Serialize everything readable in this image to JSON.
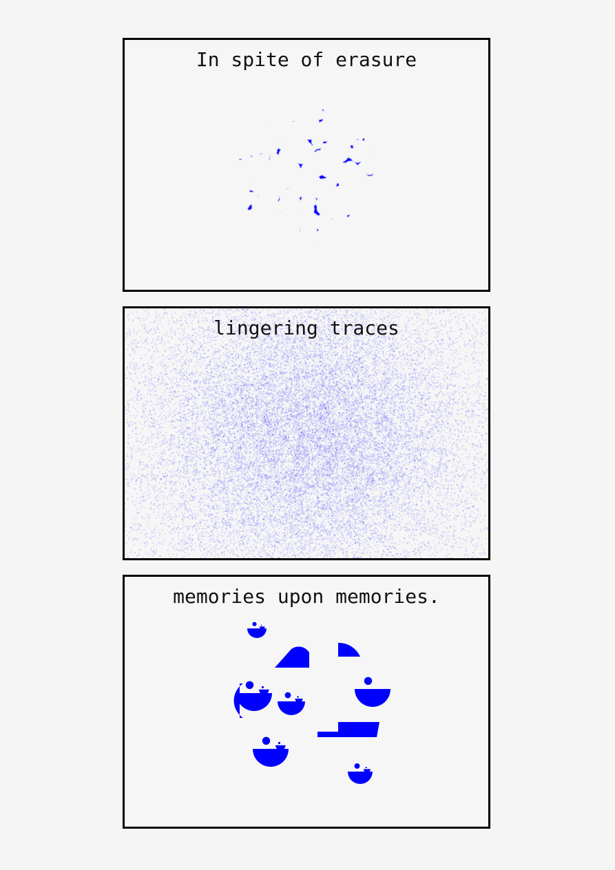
{
  "panels": [
    {
      "caption": "In spite of erasure"
    },
    {
      "caption": "lingering traces"
    },
    {
      "caption": "memories upon memories."
    }
  ],
  "colors": {
    "ink": "#0000ff",
    "background": "#f6f6f6",
    "border": "#000000",
    "text": "#111111"
  }
}
